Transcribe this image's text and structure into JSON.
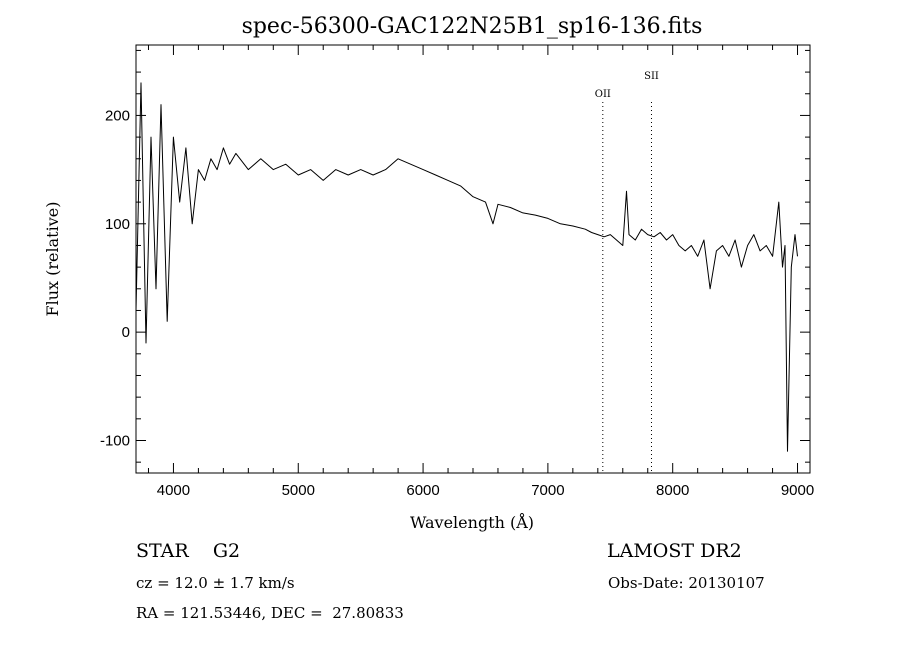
{
  "chart_data": {
    "type": "line",
    "title": "spec-56300-GAC122N25B1_sp16-136.fits",
    "xlabel": "Wavelength (Å)",
    "ylabel": "Flux (relative)",
    "xlim": [
      3700,
      9100
    ],
    "ylim": [
      -130,
      265
    ],
    "x_ticks": [
      4000,
      5000,
      6000,
      7000,
      8000,
      9000
    ],
    "y_ticks": [
      -100,
      0,
      100,
      200
    ],
    "grid": false,
    "series": [
      {
        "color": "#000000",
        "x": [
          3700,
          3740,
          3780,
          3820,
          3860,
          3900,
          3950,
          4000,
          4050,
          4100,
          4150,
          4200,
          4250,
          4300,
          4350,
          4400,
          4450,
          4500,
          4600,
          4700,
          4800,
          4900,
          5000,
          5100,
          5200,
          5300,
          5400,
          5500,
          5600,
          5700,
          5800,
          5900,
          6000,
          6100,
          6200,
          6300,
          6400,
          6500,
          6560,
          6600,
          6700,
          6800,
          6900,
          7000,
          7100,
          7200,
          7300,
          7350,
          7400,
          7450,
          7500,
          7550,
          7600,
          7630,
          7650,
          7700,
          7750,
          7800,
          7850,
          7900,
          7950,
          8000,
          8050,
          8100,
          8150,
          8200,
          8250,
          8300,
          8350,
          8400,
          8450,
          8500,
          8550,
          8600,
          8650,
          8700,
          8750,
          8800,
          8850,
          8880,
          8900,
          8920,
          8950,
          8980,
          9000
        ],
        "values": [
          20,
          230,
          -10,
          180,
          40,
          210,
          10,
          180,
          120,
          170,
          100,
          150,
          140,
          160,
          150,
          170,
          155,
          165,
          150,
          160,
          150,
          155,
          145,
          150,
          140,
          150,
          145,
          150,
          145,
          150,
          160,
          155,
          150,
          145,
          140,
          135,
          125,
          120,
          100,
          118,
          115,
          110,
          108,
          105,
          100,
          98,
          95,
          92,
          90,
          88,
          90,
          85,
          80,
          130,
          90,
          85,
          95,
          90,
          88,
          92,
          85,
          90,
          80,
          75,
          80,
          70,
          85,
          40,
          75,
          80,
          70,
          85,
          60,
          80,
          90,
          75,
          80,
          70,
          120,
          60,
          80,
          -110,
          60,
          90,
          70
        ]
      }
    ],
    "annotations": [
      {
        "label": "OII",
        "x": 7440
      },
      {
        "label": "SII",
        "x": 7830
      }
    ]
  },
  "info": {
    "object_class": "STAR    G2",
    "survey": "LAMOST DR2",
    "redshift": "cz = 12.0 ± 1.7 km/s",
    "obs_date": "Obs-Date: 20130107",
    "coords": "RA = 121.53446, DEC =  27.80833"
  }
}
